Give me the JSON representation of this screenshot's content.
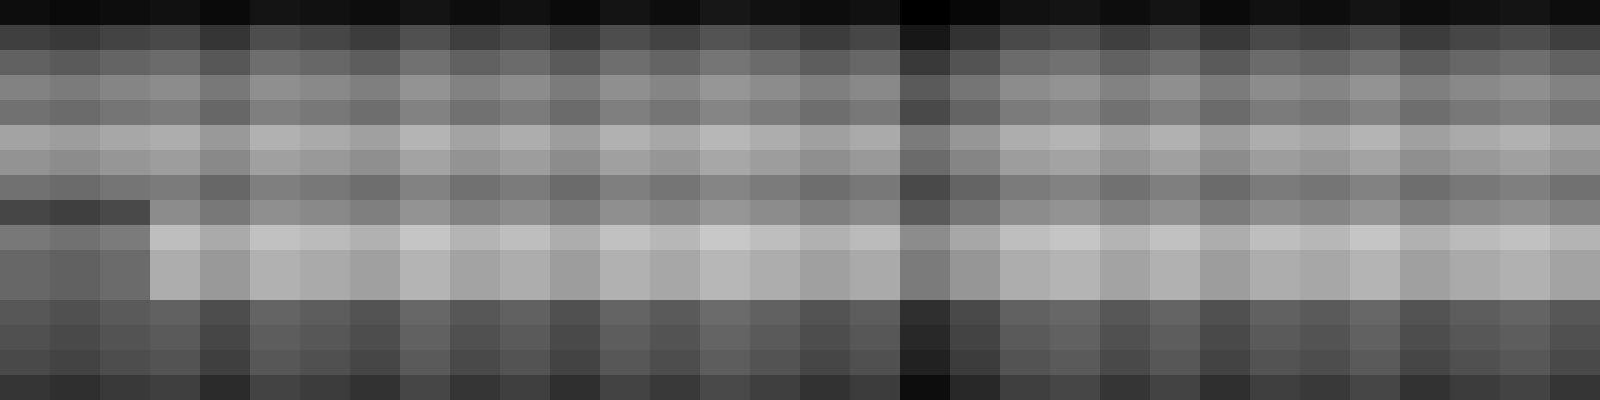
{
  "chart_data": {
    "type": "heatmap",
    "tick_labels": false,
    "cells": [
      [
        10,
        9,
        10,
        11,
        9,
        12,
        11,
        10,
        12,
        10,
        11,
        9,
        12,
        10,
        13,
        11,
        10,
        11,
        6,
        8,
        11,
        12,
        10,
        12,
        9,
        11,
        10,
        12,
        10,
        11,
        12,
        10
      ],
      [
        25,
        23,
        26,
        28,
        22,
        29,
        27,
        24,
        30,
        25,
        28,
        23,
        29,
        26,
        31,
        28,
        24,
        27,
        13,
        21,
        28,
        30,
        25,
        29,
        23,
        28,
        26,
        30,
        24,
        27,
        29,
        25
      ],
      [
        35,
        33,
        36,
        38,
        32,
        39,
        37,
        34,
        40,
        35,
        38,
        33,
        39,
        36,
        41,
        38,
        34,
        37,
        23,
        31,
        38,
        40,
        35,
        39,
        33,
        38,
        36,
        40,
        34,
        37,
        39,
        35
      ],
      [
        45,
        43,
        46,
        48,
        42,
        49,
        47,
        44,
        50,
        45,
        48,
        43,
        49,
        46,
        51,
        48,
        44,
        47,
        33,
        41,
        48,
        50,
        45,
        49,
        43,
        48,
        46,
        50,
        44,
        47,
        49,
        45
      ],
      [
        40,
        38,
        41,
        43,
        37,
        44,
        42,
        39,
        45,
        40,
        43,
        38,
        44,
        41,
        46,
        43,
        39,
        42,
        28,
        36,
        43,
        45,
        40,
        44,
        38,
        43,
        41,
        45,
        39,
        42,
        44,
        40
      ],
      [
        55,
        53,
        56,
        58,
        52,
        59,
        57,
        54,
        60,
        55,
        58,
        53,
        59,
        56,
        61,
        58,
        54,
        57,
        43,
        51,
        58,
        60,
        55,
        59,
        53,
        58,
        56,
        60,
        54,
        57,
        59,
        55
      ],
      [
        50,
        48,
        51,
        53,
        47,
        54,
        52,
        49,
        55,
        50,
        53,
        48,
        54,
        51,
        56,
        53,
        49,
        52,
        38,
        46,
        53,
        55,
        50,
        54,
        48,
        53,
        51,
        55,
        49,
        52,
        54,
        50
      ],
      [
        40,
        38,
        41,
        43,
        37,
        44,
        42,
        39,
        45,
        40,
        43,
        38,
        44,
        41,
        46,
        43,
        39,
        42,
        28,
        36,
        43,
        45,
        40,
        44,
        38,
        43,
        41,
        45,
        39,
        42,
        44,
        40
      ],
      [
        27,
        25,
        28,
        48,
        42,
        49,
        47,
        44,
        50,
        45,
        48,
        43,
        49,
        46,
        51,
        48,
        44,
        47,
        33,
        41,
        48,
        50,
        45,
        49,
        43,
        48,
        46,
        50,
        44,
        47,
        49,
        45
      ],
      [
        42,
        40,
        43,
        63,
        57,
        64,
        62,
        59,
        65,
        60,
        63,
        58,
        64,
        61,
        66,
        63,
        59,
        62,
        48,
        56,
        63,
        65,
        60,
        64,
        58,
        63,
        61,
        65,
        59,
        62,
        64,
        60
      ],
      [
        37,
        35,
        38,
        58,
        52,
        59,
        57,
        54,
        60,
        55,
        58,
        53,
        59,
        56,
        61,
        58,
        54,
        57,
        43,
        51,
        58,
        60,
        55,
        59,
        53,
        58,
        56,
        60,
        54,
        57,
        59,
        55
      ],
      [
        37,
        35,
        38,
        58,
        52,
        59,
        57,
        54,
        60,
        55,
        58,
        53,
        59,
        56,
        61,
        58,
        54,
        57,
        43,
        51,
        58,
        60,
        55,
        59,
        53,
        58,
        56,
        60,
        54,
        57,
        59,
        55
      ],
      [
        32,
        30,
        33,
        35,
        29,
        36,
        34,
        31,
        37,
        32,
        35,
        30,
        36,
        33,
        38,
        35,
        31,
        34,
        20,
        28,
        35,
        37,
        32,
        36,
        30,
        35,
        33,
        37,
        31,
        34,
        36,
        32
      ],
      [
        30,
        28,
        31,
        33,
        27,
        34,
        32,
        29,
        35,
        30,
        33,
        28,
        34,
        31,
        36,
        33,
        29,
        32,
        18,
        26,
        33,
        35,
        30,
        34,
        28,
        33,
        31,
        35,
        29,
        32,
        34,
        30
      ],
      [
        28,
        26,
        29,
        31,
        25,
        32,
        30,
        27,
        33,
        28,
        31,
        26,
        32,
        29,
        34,
        31,
        27,
        30,
        16,
        24,
        31,
        33,
        28,
        32,
        26,
        31,
        29,
        33,
        27,
        30,
        32,
        28
      ],
      [
        22,
        20,
        23,
        25,
        19,
        26,
        24,
        21,
        27,
        22,
        25,
        20,
        26,
        23,
        28,
        25,
        21,
        24,
        10,
        18,
        25,
        27,
        22,
        26,
        20,
        25,
        23,
        27,
        21,
        24,
        26,
        22
      ]
    ]
  }
}
